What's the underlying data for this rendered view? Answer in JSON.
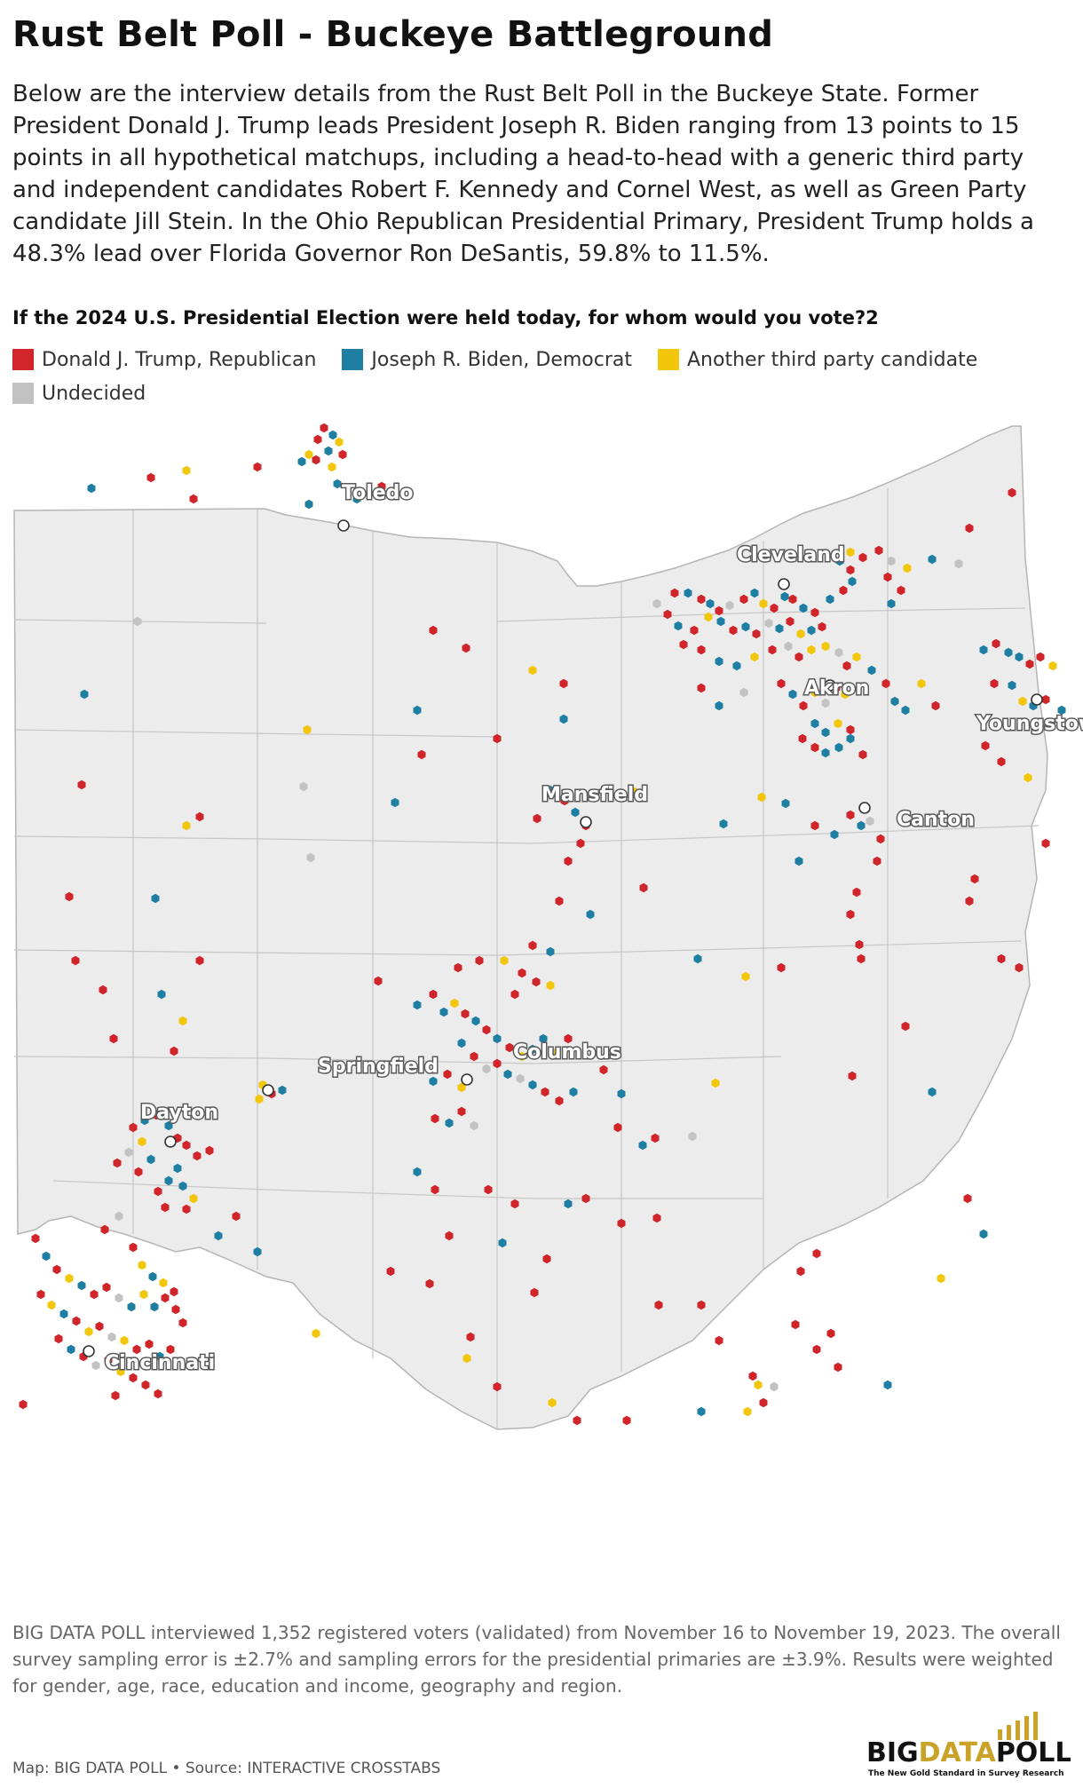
{
  "title": "Rust Belt Poll - Buckeye Battleground",
  "intro": "Below are the interview details from the Rust Belt Poll in the Buckeye State. Former President Donald J. Trump leads President Joseph R. Biden ranging from 13 points to 15 points in all hypothetical matchups, including a head-to-head with a generic third party and independent candidates Robert F. Kennedy and Cornel West, as well as Green Party candidate Jill Stein. In the Ohio Republican Presidential Primary, President Trump holds a 48.3% lead over Florida Governor Ron DeSantis, 59.8% to 11.5%.",
  "question": "If the 2024 U.S. Presidential Election were held today, for whom would you vote?2",
  "legend": [
    {
      "label": "Donald J. Trump, Republican",
      "color": "#d0252a"
    },
    {
      "label": "Joseph R. Biden, Democrat",
      "color": "#1f7fa3"
    },
    {
      "label": "Another third party candidate",
      "color": "#f2c60b"
    },
    {
      "label": "Undecided",
      "color": "#c2c2c2"
    }
  ],
  "cities": [
    "Toledo",
    "Cleveland",
    "Akron",
    "Youngstown",
    "Mansfield",
    "Canton",
    "Columbus",
    "Springfield",
    "Dayton",
    "Cincinnati"
  ],
  "methodology": "BIG DATA POLL interviewed 1,352 registered voters (validated) from November 16 to November 19, 2023. The overall survey sampling error is ±2.7% and sampling errors for the presidential primaries are ±3.9%. Results were weighted for gender, age, race, education and income, geography and region.",
  "footer": "Map: BIG DATA POLL • Source: INTERACTIVE CROSSTABS",
  "logo": {
    "part1": "BIG",
    "part2": "DATA",
    "part3": "POLL",
    "tagline": "The New Gold Standard in Survey Research",
    "accent": "#c9a227"
  }
}
